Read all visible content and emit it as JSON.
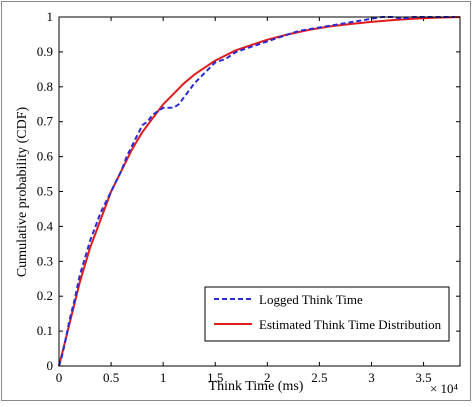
{
  "chart_data": {
    "type": "line",
    "xlabel": "Think Time (ms)",
    "ylabel": "Cumulative probability (CDF)",
    "x_multiplier": "× 10⁴",
    "xlim": [
      0,
      3.85
    ],
    "ylim": [
      0,
      1
    ],
    "x_ticks": [
      "0",
      "0.5",
      "1",
      "1.5",
      "2",
      "2.5",
      "3",
      "3.5"
    ],
    "x_tick_values": [
      0,
      0.5,
      1,
      1.5,
      2,
      2.5,
      3,
      3.5
    ],
    "y_ticks": [
      "0",
      "0.1",
      "0.2",
      "0.3",
      "0.4",
      "0.5",
      "0.6",
      "0.7",
      "0.8",
      "0.9",
      "1"
    ],
    "y_tick_values": [
      0,
      0.1,
      0.2,
      0.3,
      0.4,
      0.5,
      0.6,
      0.7,
      0.8,
      0.9,
      1
    ],
    "grid": false,
    "legend_position": "bottom-right",
    "series": [
      {
        "name": "Logged Think Time",
        "color": "#2b2bd6",
        "style": "dashed",
        "x": [
          0,
          0.03,
          0.06,
          0.1,
          0.15,
          0.2,
          0.25,
          0.3,
          0.35,
          0.4,
          0.45,
          0.5,
          0.55,
          0.6,
          0.65,
          0.7,
          0.75,
          0.8,
          0.85,
          0.9,
          0.95,
          1.0,
          1.05,
          1.1,
          1.15,
          1.2,
          1.3,
          1.4,
          1.5,
          1.6,
          1.7,
          1.8,
          1.9,
          2.0,
          2.1,
          2.2,
          2.3,
          2.4,
          2.5,
          2.6,
          2.7,
          2.8,
          2.9,
          3.0,
          3.1,
          3.2,
          3.3,
          3.4,
          3.5,
          3.6,
          3.7,
          3.8
        ],
        "y": [
          0,
          0.03,
          0.07,
          0.13,
          0.19,
          0.26,
          0.31,
          0.36,
          0.4,
          0.44,
          0.47,
          0.5,
          0.53,
          0.56,
          0.6,
          0.63,
          0.66,
          0.69,
          0.7,
          0.72,
          0.73,
          0.74,
          0.74,
          0.74,
          0.75,
          0.77,
          0.81,
          0.84,
          0.87,
          0.88,
          0.9,
          0.91,
          0.92,
          0.93,
          0.94,
          0.95,
          0.96,
          0.965,
          0.97,
          0.975,
          0.98,
          0.985,
          0.99,
          0.995,
          1.0,
          1.0,
          0.995,
          1.0,
          1.0,
          1.0,
          1.0,
          1.0
        ]
      },
      {
        "name": "Estimated Think Time Distribution",
        "color": "#e01c1c",
        "style": "solid",
        "x": [
          0,
          0.05,
          0.1,
          0.15,
          0.2,
          0.25,
          0.3,
          0.35,
          0.4,
          0.45,
          0.5,
          0.6,
          0.7,
          0.8,
          0.9,
          1.0,
          1.1,
          1.2,
          1.3,
          1.4,
          1.5,
          1.6,
          1.7,
          1.8,
          1.9,
          2.0,
          2.2,
          2.4,
          2.6,
          2.8,
          3.0,
          3.2,
          3.4,
          3.6,
          3.85
        ],
        "y": [
          0,
          0.06,
          0.12,
          0.18,
          0.24,
          0.29,
          0.34,
          0.38,
          0.42,
          0.46,
          0.5,
          0.56,
          0.62,
          0.67,
          0.71,
          0.75,
          0.78,
          0.81,
          0.835,
          0.855,
          0.875,
          0.89,
          0.905,
          0.915,
          0.925,
          0.935,
          0.95,
          0.963,
          0.973,
          0.98,
          0.986,
          0.991,
          0.995,
          0.998,
          1.0
        ]
      }
    ]
  }
}
